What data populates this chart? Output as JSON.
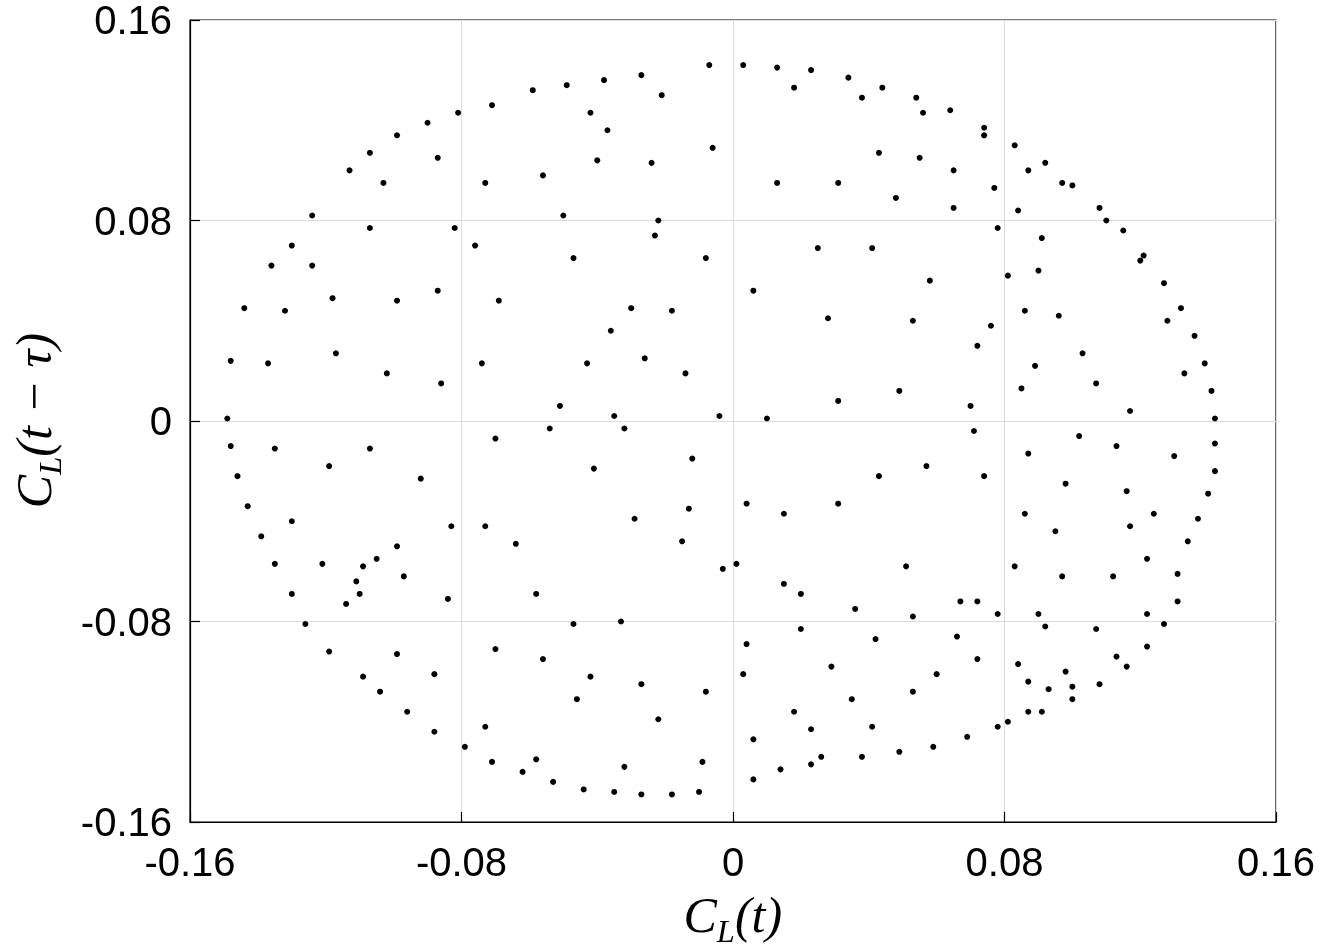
{
  "chart_data": {
    "type": "scatter",
    "xlabel": "C$_{L}$(t)",
    "ylabel": "C$_{L}$(t − τ)",
    "x": [
      -0.113,
      -0.107,
      -0.099,
      -0.09,
      -0.081,
      -0.071,
      -0.059,
      -0.049,
      -0.038,
      -0.027,
      -0.007,
      -0.124,
      -0.13,
      -0.136,
      -0.144,
      -0.148,
      -0.149,
      -0.103,
      -0.087,
      -0.073,
      -0.056,
      -0.04,
      -0.024,
      -0.006,
      -0.042,
      -0.021,
      -0.037,
      -0.107,
      -0.082,
      -0.05,
      -0.022,
      -0.124,
      -0.132,
      -0.137,
      -0.118,
      -0.117,
      -0.099,
      -0.102,
      -0.087,
      -0.086,
      -0.076,
      -0.069,
      -0.074,
      -0.047,
      -0.036,
      -0.043,
      -0.051,
      -0.023,
      -0.008,
      -0.018,
      -0.03,
      -0.026,
      -0.014,
      -0.004,
      -0.035,
      0.003,
      0.013,
      0.023,
      0.034,
      0.044,
      0.054,
      0.064,
      0.074,
      0.083,
      0.092,
      0.1,
      0.108,
      0.115,
      0.121,
      0.127,
      0.132,
      0.136,
      0.139,
      0.141,
      0.142,
      0.018,
      0.038,
      0.056,
      0.074,
      0.087,
      0.097,
      0.11,
      0.12,
      0.128,
      0.133,
      0.043,
      0.055,
      0.065,
      0.077,
      0.084,
      0.091,
      0.09,
      0.086,
      0.096,
      0.013,
      0.031,
      0.048,
      0.065,
      0.078,
      0.081,
      0.076,
      0.058,
      0.041,
      0.025,
      0.006,
      0.028,
      0.053,
      0.072,
      0.089,
      0.107,
      0.117,
      0.103,
      0.085,
      0.07,
      0.049,
      0.031,
      0.01,
      -0.148,
      -0.146,
      -0.143,
      -0.139,
      -0.135,
      -0.13,
      -0.126,
      -0.119,
      -0.109,
      -0.104,
      -0.096,
      -0.088,
      -0.079,
      -0.071,
      -0.062,
      -0.053,
      -0.044,
      -0.035,
      -0.027,
      -0.018,
      -0.01,
      -0.109,
      -0.111,
      -0.11,
      -0.105,
      -0.099,
      -0.135,
      -0.119,
      -0.107,
      -0.092,
      -0.083,
      -0.13,
      -0.121,
      -0.114,
      -0.097,
      -0.084,
      -0.099,
      -0.088,
      -0.07,
      -0.054,
      -0.032,
      -0.073,
      -0.064,
      -0.058,
      -0.047,
      -0.033,
      -0.041,
      -0.029,
      -0.015,
      -0.003,
      -0.013,
      -0.012,
      -0.056,
      -0.042,
      -0.027,
      -0.008,
      -0.022,
      -0.046,
      -0.07,
      -0.073,
      -0.058,
      -0.032,
      -0.009,
      0.142,
      0.142,
      0.14,
      0.137,
      0.134,
      0.131,
      0.131,
      0.127,
      0.122,
      0.116,
      0.108,
      0.1,
      0.091,
      0.087,
      0.081,
      0.078,
      0.069,
      0.059,
      0.049,
      0.038,
      0.026,
      0.023,
      0.014,
      0.006,
      0.13,
      0.124,
      0.122,
      0.122,
      0.113,
      0.1,
      0.093,
      0.087,
      0.113,
      0.116,
      0.117,
      0.112,
      0.107,
      0.098,
      0.092,
      0.084,
      0.09,
      0.097,
      0.095,
      0.098,
      0.102,
      0.087,
      0.086,
      0.083,
      0.078,
      0.072,
      0.074,
      0.071,
      0.057,
      0.043,
      0.031,
      0.015,
      0.004,
      0.001,
      0.015,
      0.036,
      0.053,
      0.067,
      0.051,
      0.02,
      0.004,
      0.02,
      0.042,
      0.066,
      0.072,
      0.053,
      0.035,
      0.018,
      0.003,
      0.029,
      0.06,
      0.041,
      0.023,
      0.006
    ],
    "values": [
      0.1,
      0.107,
      0.114,
      0.119,
      0.123,
      0.126,
      0.132,
      0.134,
      0.136,
      0.138,
      0.142,
      0.082,
      0.07,
      0.062,
      0.045,
      0.024,
      0.001,
      0.095,
      0.105,
      0.095,
      0.098,
      0.104,
      0.103,
      0.109,
      0.123,
      0.13,
      0.116,
      0.077,
      0.077,
      0.082,
      0.08,
      0.062,
      0.044,
      0.023,
      0.049,
      0.027,
      0.048,
      0.019,
      0.052,
      0.015,
      0.07,
      0.048,
      0.023,
      0.065,
      0.036,
      0.023,
      0.006,
      0.074,
      0.065,
      0.044,
      0.045,
      0.025,
      0.019,
      0.002,
      0.002,
      0.142,
      0.141,
      0.14,
      0.137,
      0.133,
      0.129,
      0.124,
      0.117,
      0.11,
      0.103,
      0.094,
      0.085,
      0.076,
      0.066,
      0.055,
      0.045,
      0.034,
      0.023,
      0.012,
      0.001,
      0.133,
      0.129,
      0.123,
      0.114,
      0.1,
      0.095,
      0.08,
      0.064,
      0.04,
      0.019,
      0.107,
      0.105,
      0.1,
      0.093,
      0.084,
      0.073,
      0.06,
      0.044,
      0.042,
      0.095,
      0.095,
      0.089,
      0.085,
      0.077,
      0.058,
      0.038,
      0.056,
      0.069,
      0.069,
      0.052,
      0.041,
      0.04,
      0.03,
      0.022,
      0.015,
      0.004,
      0.027,
      0.013,
      0.006,
      0.012,
      0.008,
      0.001,
      -0.01,
      -0.022,
      -0.034,
      -0.046,
      -0.057,
      -0.069,
      -0.081,
      -0.092,
      -0.102,
      -0.108,
      -0.116,
      -0.124,
      -0.13,
      -0.136,
      -0.14,
      -0.144,
      -0.147,
      -0.148,
      -0.149,
      -0.149,
      -0.148,
      -0.058,
      -0.064,
      -0.069,
      -0.055,
      -0.05,
      -0.011,
      -0.018,
      -0.011,
      -0.023,
      -0.042,
      -0.04,
      -0.057,
      -0.073,
      -0.062,
      -0.071,
      -0.093,
      -0.101,
      -0.007,
      -0.003,
      -0.003,
      -0.042,
      -0.049,
      -0.069,
      -0.081,
      -0.08,
      -0.019,
      -0.039,
      -0.048,
      -0.059,
      -0.035,
      -0.015,
      -0.095,
      -0.102,
      -0.105,
      -0.108,
      -0.119,
      -0.111,
      -0.091,
      -0.122,
      -0.135,
      -0.138,
      -0.136,
      -0.009,
      -0.02,
      -0.029,
      -0.039,
      -0.048,
      -0.061,
      -0.072,
      -0.081,
      -0.09,
      -0.098,
      -0.105,
      -0.111,
      -0.116,
      -0.116,
      -0.12,
      -0.122,
      -0.126,
      -0.13,
      -0.132,
      -0.134,
      -0.134,
      -0.137,
      -0.139,
      -0.143,
      -0.014,
      -0.037,
      -0.055,
      -0.077,
      -0.094,
      -0.106,
      -0.107,
      -0.104,
      -0.01,
      -0.028,
      -0.042,
      -0.062,
      -0.083,
      -0.1,
      -0.082,
      -0.097,
      -0.077,
      -0.062,
      -0.044,
      -0.025,
      -0.006,
      -0.013,
      -0.037,
      -0.058,
      -0.077,
      -0.072,
      -0.022,
      -0.004,
      -0.018,
      -0.022,
      -0.033,
      -0.037,
      -0.033,
      -0.057,
      -0.065,
      -0.075,
      -0.078,
      -0.072,
      -0.058,
      -0.069,
      -0.089,
      -0.083,
      -0.087,
      -0.086,
      -0.095,
      -0.108,
      -0.111,
      -0.116,
      -0.101,
      -0.098,
      -0.101,
      -0.122,
      -0.123,
      -0.127
    ],
    "color": "#000000",
    "marker": "circle",
    "xlim": [
      -0.16,
      0.16
    ],
    "ylim": [
      -0.16,
      0.16
    ],
    "xticks": [
      -0.16,
      -0.08,
      0,
      0.08,
      0.16
    ],
    "yticks": [
      -0.16,
      -0.08,
      0,
      0.08,
      0.16
    ],
    "grid": true
  }
}
